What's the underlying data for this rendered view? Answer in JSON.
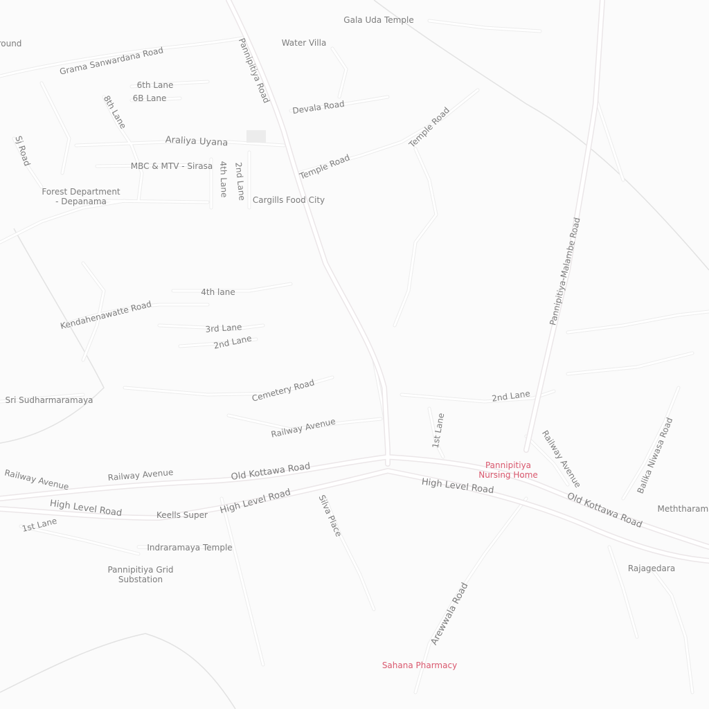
{
  "map": {
    "labels": {
      "gala_uda_temple": "Gala Uda Temple",
      "water_villa": "Water Villa",
      "ground": "round",
      "grama_sanwardana_road": "Grama Sanwardana Road",
      "pannipitiya_road": "Pannipitiya Road",
      "sixth_lane": "6th Lane",
      "sixb_lane": "6B Lane",
      "eighth_lane": "8th Lane",
      "devala_road": "Devala Road",
      "temple_road_1": "Temple Road",
      "temple_road_2": "Temple Road",
      "sj_road": "Sj Road",
      "araliya_uyana": "Araliya Uyana",
      "mbc_mtv": "MBC & MTV - Sirasa",
      "fourth_lane_top": "4th Lane",
      "second_lane_top": "2nd Lane",
      "forest_department": "Forest Department\n- Depanama",
      "cargills": "Cargills Food City",
      "pannipitiya_malambe_road": "Pannipitiya-Malambe Road",
      "fourth_lane_mid": "4th lane",
      "kendahenawatte_road": "Kendahenawatte Road",
      "third_lane": "3rd Lane",
      "second_lane_mid": "2nd Lane",
      "cemetery_road": "Cemetery Road",
      "sri_sudharmaramaya": "Sri Sudharmaramaya",
      "second_lane_east": "2nd Lane",
      "first_lane_east": "1st Lane",
      "railway_avenue_center": "Railway Avenue",
      "railway_avenue_east": "Railway Avenue",
      "balika_niwasa_road": "Balika Niwasa Road",
      "pannipitiya_nursing_home": "Pannipitiya\nNursing Home",
      "old_kottawa_road_west": "Old Kottawa Road",
      "old_kottawa_road_east": "Old Kottawa Road",
      "railway_avenue_west": "Railway Avenue",
      "railway_avenue_west2": "Railway Avenue",
      "high_level_road_east": "High Level Road",
      "high_level_road_center": "High Level Road",
      "high_level_road_west": "High Level Road",
      "keells_super": "Keells Super",
      "silva_place": "Silva Place",
      "meththarama": "Meththarama",
      "first_lane_west": "1st Lane",
      "indraramaya_temple": "Indraramaya Temple",
      "pannipitiya_grid_substation": "Pannipitiya Grid\nSubstation",
      "rajagedara": "Rajagedara",
      "arewwala_road": "Arewwala Road",
      "sahana_pharmacy": "Sahana Pharmacy"
    },
    "colors": {
      "background": "#fbfbfb",
      "road_casing": "#ececec",
      "road_fill": "#ffffff",
      "label_text": "#7c7c7c",
      "health_poi": "#d9586e"
    }
  }
}
